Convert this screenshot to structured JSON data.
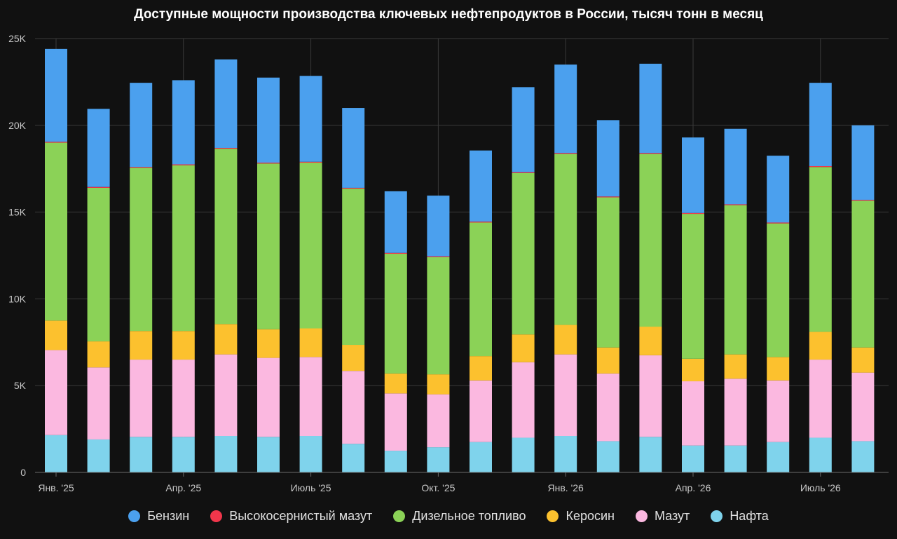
{
  "chart_data": {
    "type": "bar",
    "stacked": true,
    "title": "Доступные мощности производства ключевых нефтепродуктов в России, тысяч тонн в месяц",
    "ylim": [
      0,
      25000
    ],
    "y_ticks": [
      {
        "value": 0,
        "label": "0"
      },
      {
        "value": 5000,
        "label": "5K"
      },
      {
        "value": 10000,
        "label": "10K"
      },
      {
        "value": 15000,
        "label": "15K"
      },
      {
        "value": 20000,
        "label": "20K"
      },
      {
        "value": 25000,
        "label": "25K"
      }
    ],
    "categories": [
      "2025-01",
      "2025-02",
      "2025-03",
      "2025-04",
      "2025-05",
      "2025-06",
      "2025-07",
      "2025-08",
      "2025-09",
      "2025-10",
      "2025-11",
      "2025-12",
      "2026-01",
      "2026-02",
      "2026-03",
      "2026-04",
      "2026-05",
      "2026-06",
      "2026-07",
      "2026-08"
    ],
    "x_ticks": [
      {
        "index": 0,
        "label": "Янв. '25"
      },
      {
        "index": 3,
        "label": "Апр. '25"
      },
      {
        "index": 6,
        "label": "Июль '25"
      },
      {
        "index": 9,
        "label": "Окт. '25"
      },
      {
        "index": 12,
        "label": "Янв. '26"
      },
      {
        "index": 15,
        "label": "Апр. '26"
      },
      {
        "index": 18,
        "label": "Июль '26"
      }
    ],
    "grid": true,
    "legend_position": "bottom",
    "series": [
      {
        "name": "Нафта",
        "color": "#7fd3ec",
        "values": [
          2150,
          1900,
          2050,
          2050,
          2100,
          2050,
          2100,
          1650,
          1250,
          1450,
          1750,
          2000,
          2100,
          1800,
          2050,
          1550,
          1550,
          1750,
          2000,
          1800
        ]
      },
      {
        "name": "Мазут",
        "color": "#fbb8e0",
        "values": [
          4900,
          4150,
          4450,
          4450,
          4700,
          4550,
          4550,
          4200,
          3300,
          3050,
          3550,
          4350,
          4700,
          3900,
          4700,
          3700,
          3850,
          3550,
          4500,
          3950
        ]
      },
      {
        "name": "Керосин",
        "color": "#fcc12e",
        "values": [
          1700,
          1500,
          1650,
          1650,
          1750,
          1650,
          1650,
          1500,
          1150,
          1150,
          1400,
          1600,
          1700,
          1500,
          1650,
          1300,
          1400,
          1350,
          1600,
          1450
        ]
      },
      {
        "name": "Дизельное топливо",
        "color": "#8bd257",
        "values": [
          10250,
          8850,
          9400,
          9550,
          10100,
          9550,
          9550,
          9000,
          6900,
          6750,
          7700,
          9300,
          9850,
          8650,
          9950,
          8350,
          8600,
          7700,
          9500,
          8450
        ]
      },
      {
        "name": "Высокосернистый мазут",
        "color": "#f0364b",
        "values": [
          50,
          50,
          50,
          50,
          50,
          50,
          50,
          50,
          50,
          50,
          50,
          50,
          50,
          50,
          50,
          50,
          50,
          50,
          50,
          50
        ]
      },
      {
        "name": "Бензин",
        "color": "#4ba0ee",
        "values": [
          5350,
          4500,
          4850,
          4850,
          5100,
          4900,
          4950,
          4600,
          3550,
          3500,
          4100,
          4900,
          5100,
          4400,
          5150,
          4350,
          4350,
          3850,
          4800,
          4300
        ]
      }
    ],
    "legend_order": [
      "Бензин",
      "Высокосернистый мазут",
      "Дизельное топливо",
      "Керосин",
      "Мазут",
      "Нафта"
    ]
  }
}
